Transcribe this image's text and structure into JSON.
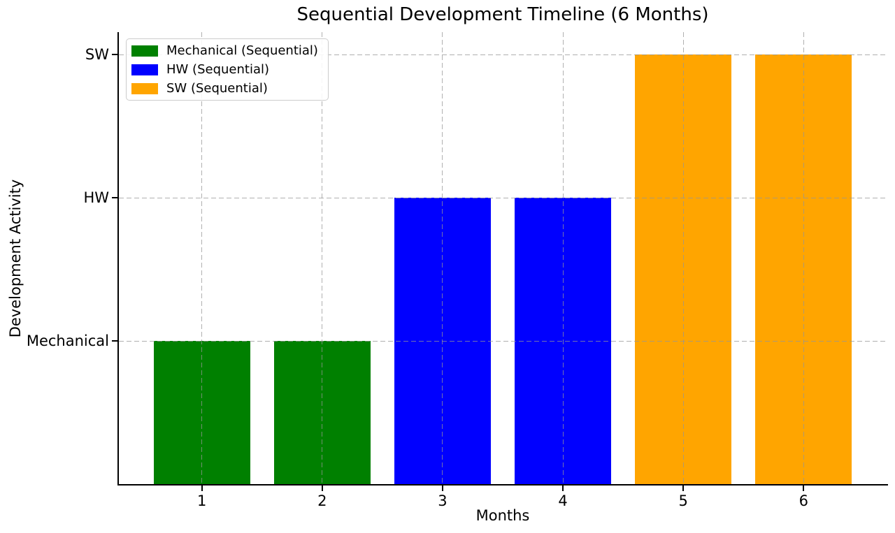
{
  "chart_data": {
    "type": "bar",
    "title": "Sequential Development Timeline (6 Months)",
    "xlabel": "Months",
    "ylabel": "Development Activity",
    "x_ticks": [
      1,
      2,
      3,
      4,
      5,
      6
    ],
    "y_ticks": [
      {
        "value": 1,
        "label": "Mechanical"
      },
      {
        "value": 2,
        "label": "HW"
      },
      {
        "value": 3,
        "label": "SW"
      }
    ],
    "xlim": [
      0.31,
      6.69
    ],
    "ylim": [
      0,
      3.156
    ],
    "bar_width": 0.8,
    "grid": {
      "visible": true,
      "linestyle": "dashed",
      "color": "#bfbfbf",
      "drawn_over_bars": true
    },
    "bars": [
      {
        "month": 1,
        "value": 1,
        "series": "Mechanical (Sequential)",
        "color": "#008000"
      },
      {
        "month": 2,
        "value": 1,
        "series": "Mechanical (Sequential)",
        "color": "#008000"
      },
      {
        "month": 3,
        "value": 2,
        "series": "HW (Sequential)",
        "color": "#0000ff"
      },
      {
        "month": 4,
        "value": 2,
        "series": "HW (Sequential)",
        "color": "#0000ff"
      },
      {
        "month": 5,
        "value": 3,
        "series": "SW (Sequential)",
        "color": "#ffa500"
      },
      {
        "month": 6,
        "value": 3,
        "series": "SW (Sequential)",
        "color": "#ffa500"
      }
    ],
    "series": [
      {
        "name": "Mechanical (Sequential)",
        "color": "#008000",
        "months": [
          1,
          2
        ],
        "activity_level": 1,
        "activity_label": "Mechanical"
      },
      {
        "name": "HW (Sequential)",
        "color": "#0000ff",
        "months": [
          3,
          4
        ],
        "activity_level": 2,
        "activity_label": "HW"
      },
      {
        "name": "SW (Sequential)",
        "color": "#ffa500",
        "months": [
          5,
          6
        ],
        "activity_level": 3,
        "activity_label": "SW"
      }
    ],
    "legend": {
      "position": "upper left",
      "items": [
        {
          "label": "Mechanical (Sequential)",
          "color": "#008000"
        },
        {
          "label": "HW (Sequential)",
          "color": "#0000ff"
        },
        {
          "label": "SW (Sequential)",
          "color": "#ffa500"
        }
      ]
    }
  },
  "colors": {
    "background": "#ffffff",
    "axis": "#000000",
    "text": "#000000",
    "grid": "#bfbfbf",
    "legend_border": "#cccccc"
  }
}
